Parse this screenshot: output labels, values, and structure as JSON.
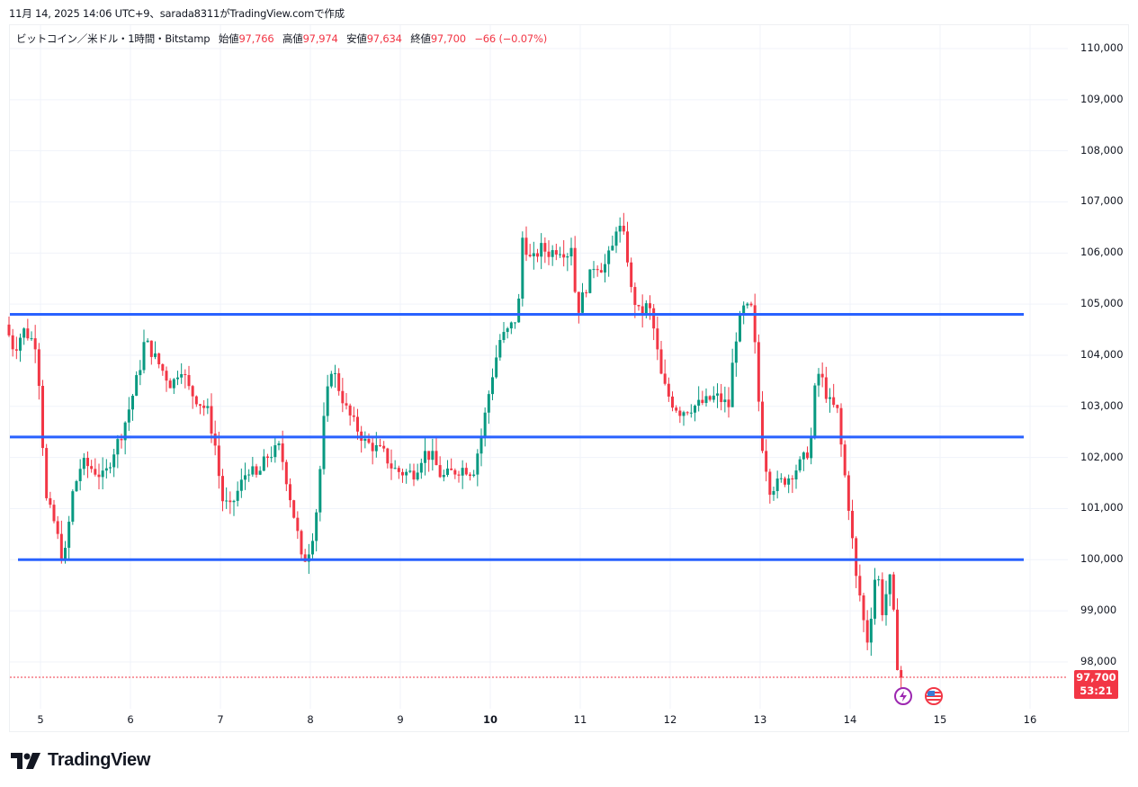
{
  "caption": "11月 14, 2025 14:06 UTC+9、sarada8311がTradingView.comで作成",
  "legend": {
    "symbol": "ビットコイン／米ドル・1時間・Bitstamp",
    "open_label": "始値",
    "open": "97,766",
    "high_label": "高値",
    "high": "97,974",
    "low_label": "安値",
    "low": "97,634",
    "close_label": "終値",
    "close": "97,700",
    "change": "−66 (−0.07%)"
  },
  "price_badge": {
    "price": "97,700",
    "countdown": "53:21"
  },
  "logo": {
    "text": "TradingView"
  },
  "events": [
    {
      "icon": "lightning-event-icon"
    },
    {
      "icon": "us-flag-event-icon"
    }
  ],
  "colors": {
    "up": "#089981",
    "down": "#f23645",
    "hline": "#2962ff",
    "grid": "#f0f3fa",
    "last_price": "#f23645"
  },
  "chart_data": {
    "type": "candlestick",
    "title": "ビットコイン／米ドル・1時間・Bitstamp",
    "xlabel": "",
    "ylabel": "",
    "x_ticks": [
      "5",
      "6",
      "7",
      "8",
      "9",
      "10",
      "11",
      "12",
      "13",
      "14",
      "15",
      "16"
    ],
    "x_tick_bold": [
      "10"
    ],
    "y_ticks": [
      "110,000",
      "109,000",
      "108,000",
      "107,000",
      "106,000",
      "105,000",
      "104,000",
      "103,000",
      "102,000",
      "101,000",
      "100,000",
      "99,000",
      "98,000"
    ],
    "ylim": [
      97350,
      110400
    ],
    "grid": true,
    "horizontal_lines": [
      104800,
      102400,
      100000
    ],
    "last_price": 97700,
    "anchors_day_price": [
      [
        4.65,
        104600
      ],
      [
        4.75,
        104100
      ],
      [
        4.85,
        104500
      ],
      [
        5.0,
        104200
      ],
      [
        5.05,
        102800
      ],
      [
        5.1,
        101200
      ],
      [
        5.2,
        100700
      ],
      [
        5.3,
        99900
      ],
      [
        5.4,
        101300
      ],
      [
        5.5,
        101900
      ],
      [
        5.6,
        101800
      ],
      [
        5.75,
        101600
      ],
      [
        5.85,
        102100
      ],
      [
        5.95,
        102500
      ],
      [
        6.05,
        103100
      ],
      [
        6.15,
        103800
      ],
      [
        6.2,
        104300
      ],
      [
        6.3,
        104000
      ],
      [
        6.4,
        103700
      ],
      [
        6.5,
        103400
      ],
      [
        6.6,
        103800
      ],
      [
        6.7,
        103300
      ],
      [
        6.8,
        103100
      ],
      [
        6.9,
        102900
      ],
      [
        7.0,
        102100
      ],
      [
        7.05,
        101200
      ],
      [
        7.15,
        101000
      ],
      [
        7.25,
        101400
      ],
      [
        7.35,
        101800
      ],
      [
        7.45,
        101600
      ],
      [
        7.55,
        102000
      ],
      [
        7.7,
        102200
      ],
      [
        7.75,
        101800
      ],
      [
        7.82,
        101200
      ],
      [
        7.9,
        100500
      ],
      [
        7.95,
        99900
      ],
      [
        8.05,
        100300
      ],
      [
        8.12,
        101100
      ],
      [
        8.2,
        102900
      ],
      [
        8.28,
        103800
      ],
      [
        8.35,
        103400
      ],
      [
        8.45,
        102900
      ],
      [
        8.55,
        102600
      ],
      [
        8.65,
        102300
      ],
      [
        8.75,
        102200
      ],
      [
        8.85,
        102100
      ],
      [
        8.95,
        101800
      ],
      [
        9.05,
        101700
      ],
      [
        9.2,
        101700
      ],
      [
        9.3,
        102100
      ],
      [
        9.4,
        102000
      ],
      [
        9.5,
        101600
      ],
      [
        9.6,
        101700
      ],
      [
        9.75,
        101800
      ],
      [
        9.85,
        101700
      ],
      [
        9.95,
        102500
      ],
      [
        10.05,
        103500
      ],
      [
        10.15,
        104300
      ],
      [
        10.25,
        104500
      ],
      [
        10.35,
        104800
      ],
      [
        10.4,
        106300
      ],
      [
        10.5,
        105800
      ],
      [
        10.6,
        106100
      ],
      [
        10.7,
        106000
      ],
      [
        10.8,
        106100
      ],
      [
        10.9,
        106000
      ],
      [
        10.95,
        106200
      ],
      [
        11.0,
        104800
      ],
      [
        11.1,
        105300
      ],
      [
        11.2,
        105800
      ],
      [
        11.3,
        105700
      ],
      [
        11.4,
        106100
      ],
      [
        11.45,
        106600
      ],
      [
        11.55,
        106200
      ],
      [
        11.6,
        105300
      ],
      [
        11.7,
        104800
      ],
      [
        11.8,
        105000
      ],
      [
        11.85,
        104600
      ],
      [
        11.95,
        103500
      ],
      [
        12.05,
        103100
      ],
      [
        12.15,
        102900
      ],
      [
        12.3,
        103000
      ],
      [
        12.45,
        103100
      ],
      [
        12.55,
        103200
      ],
      [
        12.7,
        103000
      ],
      [
        12.75,
        104200
      ],
      [
        12.85,
        104900
      ],
      [
        12.95,
        104900
      ],
      [
        13.0,
        103800
      ],
      [
        13.05,
        102400
      ],
      [
        13.15,
        101400
      ],
      [
        13.25,
        101500
      ],
      [
        13.35,
        101600
      ],
      [
        13.5,
        101900
      ],
      [
        13.6,
        102200
      ],
      [
        13.65,
        103300
      ],
      [
        13.7,
        103700
      ],
      [
        13.8,
        103100
      ],
      [
        13.9,
        102900
      ],
      [
        13.95,
        102100
      ],
      [
        14.05,
        100700
      ],
      [
        14.1,
        99700
      ],
      [
        14.15,
        99300
      ],
      [
        14.2,
        98700
      ],
      [
        14.25,
        98300
      ],
      [
        14.3,
        99600
      ],
      [
        14.35,
        99700
      ],
      [
        14.4,
        99000
      ],
      [
        14.45,
        99400
      ],
      [
        14.5,
        99700
      ],
      [
        14.55,
        98100
      ],
      [
        14.6,
        97700
      ]
    ]
  }
}
